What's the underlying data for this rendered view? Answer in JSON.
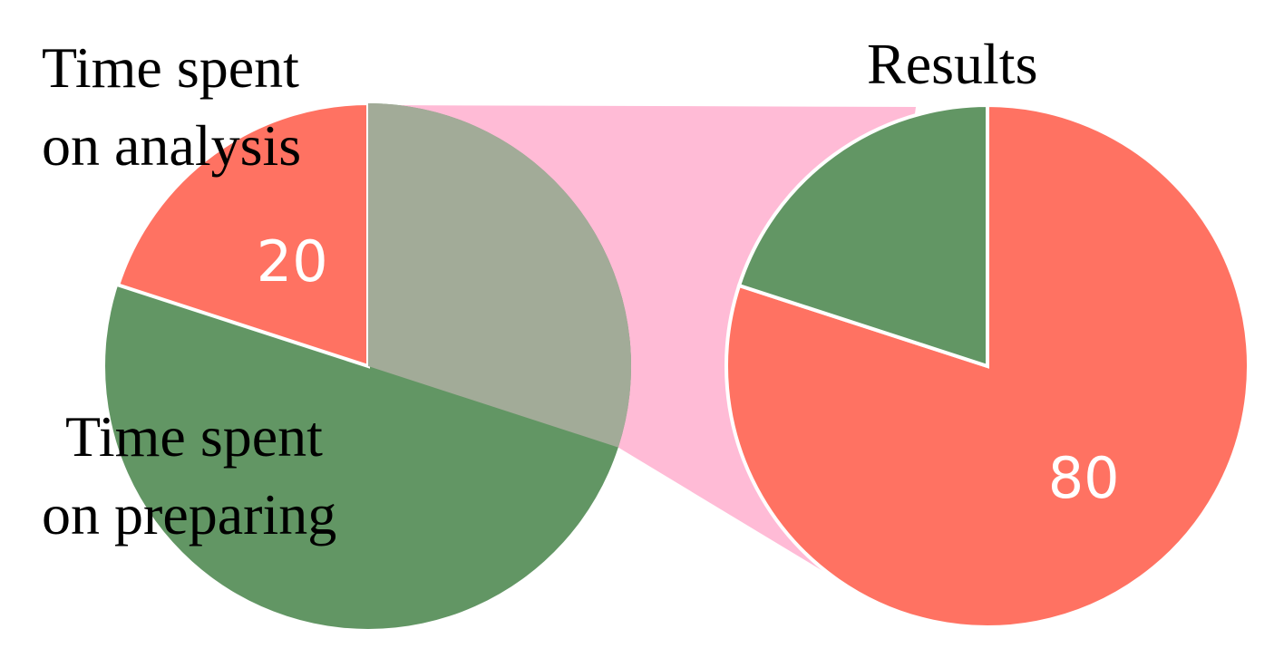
{
  "chart_data": {
    "type": "pie",
    "left_pie": {
      "slices": [
        {
          "label_lines": [
            "Time spent",
            "on analysis"
          ],
          "value": 20,
          "value_label": "20"
        },
        {
          "label_lines": [
            "Time spent",
            "on preparing"
          ],
          "value": 80,
          "value_label": ""
        }
      ],
      "highlighted_overlay_slice": {
        "value": 30
      }
    },
    "right_pie": {
      "title": "Results",
      "slices": [
        {
          "value": 80,
          "value_label": "80"
        },
        {
          "value": 20,
          "value_label": ""
        }
      ]
    }
  },
  "colors": {
    "red": "#ff7262",
    "green": "#629664",
    "gray_overlay": "#a2ab98",
    "pink_connector": "#ffbbd6",
    "white": "#ffffff"
  }
}
